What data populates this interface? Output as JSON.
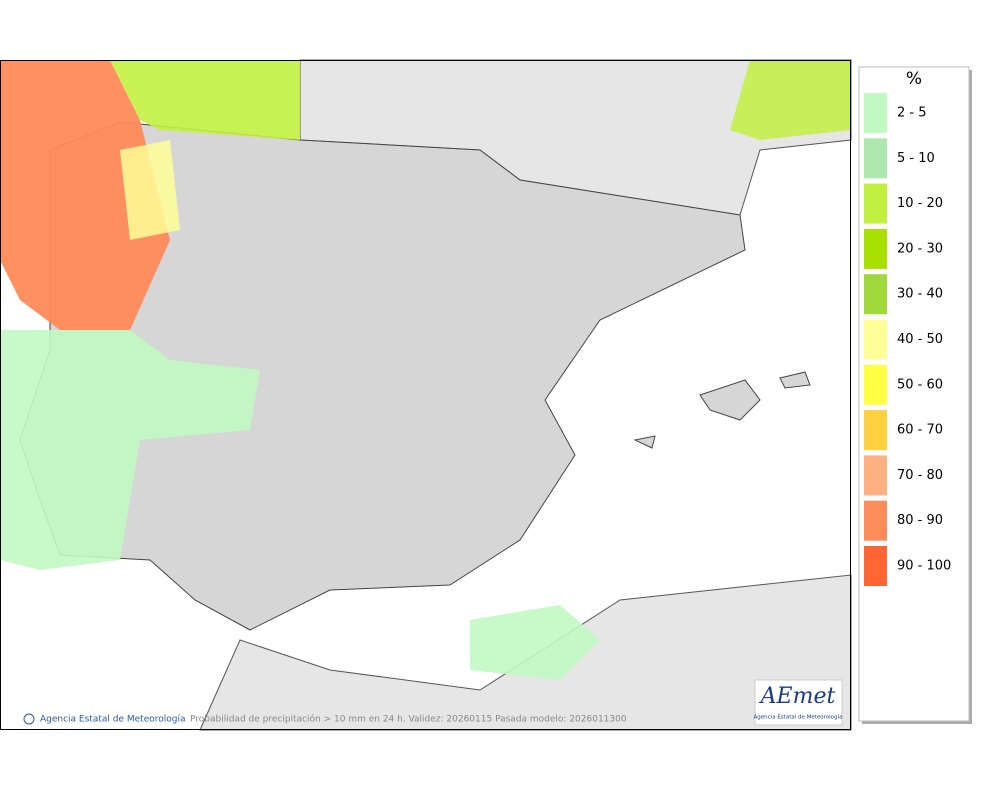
{
  "legend": {
    "title": "%",
    "items": [
      {
        "label": "2 - 5",
        "color": "#c2f8c2"
      },
      {
        "label": "5 - 10",
        "color": "#aee8ae"
      },
      {
        "label": "10 - 20",
        "color": "#c2f040"
      },
      {
        "label": "20 - 30",
        "color": "#a8e000"
      },
      {
        "label": "30 - 40",
        "color": "#a0d83c"
      },
      {
        "label": "40 - 50",
        "color": "#ffff99"
      },
      {
        "label": "50 - 60",
        "color": "#ffff44"
      },
      {
        "label": "60 - 70",
        "color": "#ffd040"
      },
      {
        "label": "70 - 80",
        "color": "#ffb080"
      },
      {
        "label": "80 - 90",
        "color": "#ff8a5a"
      },
      {
        "label": "90 - 100",
        "color": "#ff6633"
      }
    ]
  },
  "footer": {
    "credit": "Agencia Estatal de Meteorología",
    "caption": "Probabilidad de precipitación > 10 mm en 24 h. Validez: 20260115 Pasada modelo: 2026011300"
  },
  "logo": {
    "name": "AEmet",
    "subtitle": "Agencia Estatal de Meteorología"
  }
}
